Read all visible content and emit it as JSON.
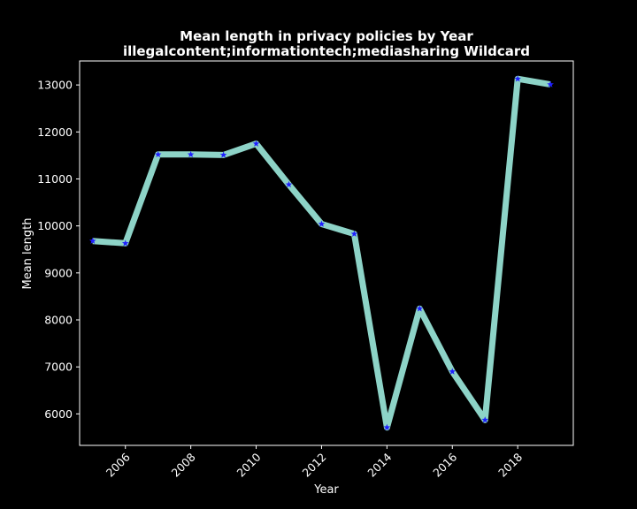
{
  "chart_data": {
    "type": "line",
    "title_line1": "Mean length in privacy policies by Year",
    "title_line2": "illegalcontent;informationtech;mediasharing Wildcard",
    "xlabel": "Year",
    "ylabel": "Mean length",
    "x": [
      2005,
      2006,
      2007,
      2008,
      2009,
      2010,
      2011,
      2012,
      2013,
      2014,
      2015,
      2016,
      2017,
      2018,
      2019
    ],
    "series": [
      {
        "values": [
          9680,
          9630,
          11520,
          11520,
          11510,
          11750,
          10880,
          10040,
          9830,
          5710,
          8240,
          6900,
          5870,
          13130,
          13010
        ]
      }
    ],
    "xlim": [
      2004.6,
      2019.7
    ],
    "ylim": [
      5330,
      13510
    ],
    "x_ticks": [
      2006,
      2008,
      2010,
      2012,
      2014,
      2016,
      2018
    ],
    "y_ticks": [
      6000,
      7000,
      8000,
      9000,
      10000,
      11000,
      12000,
      13000
    ],
    "grid": false,
    "legend": "none",
    "colors": {
      "background": "#000000",
      "line": "#8dd3c7",
      "marker": "#1f1fff",
      "axes": "#ffffff",
      "text": "#ffffff"
    }
  }
}
